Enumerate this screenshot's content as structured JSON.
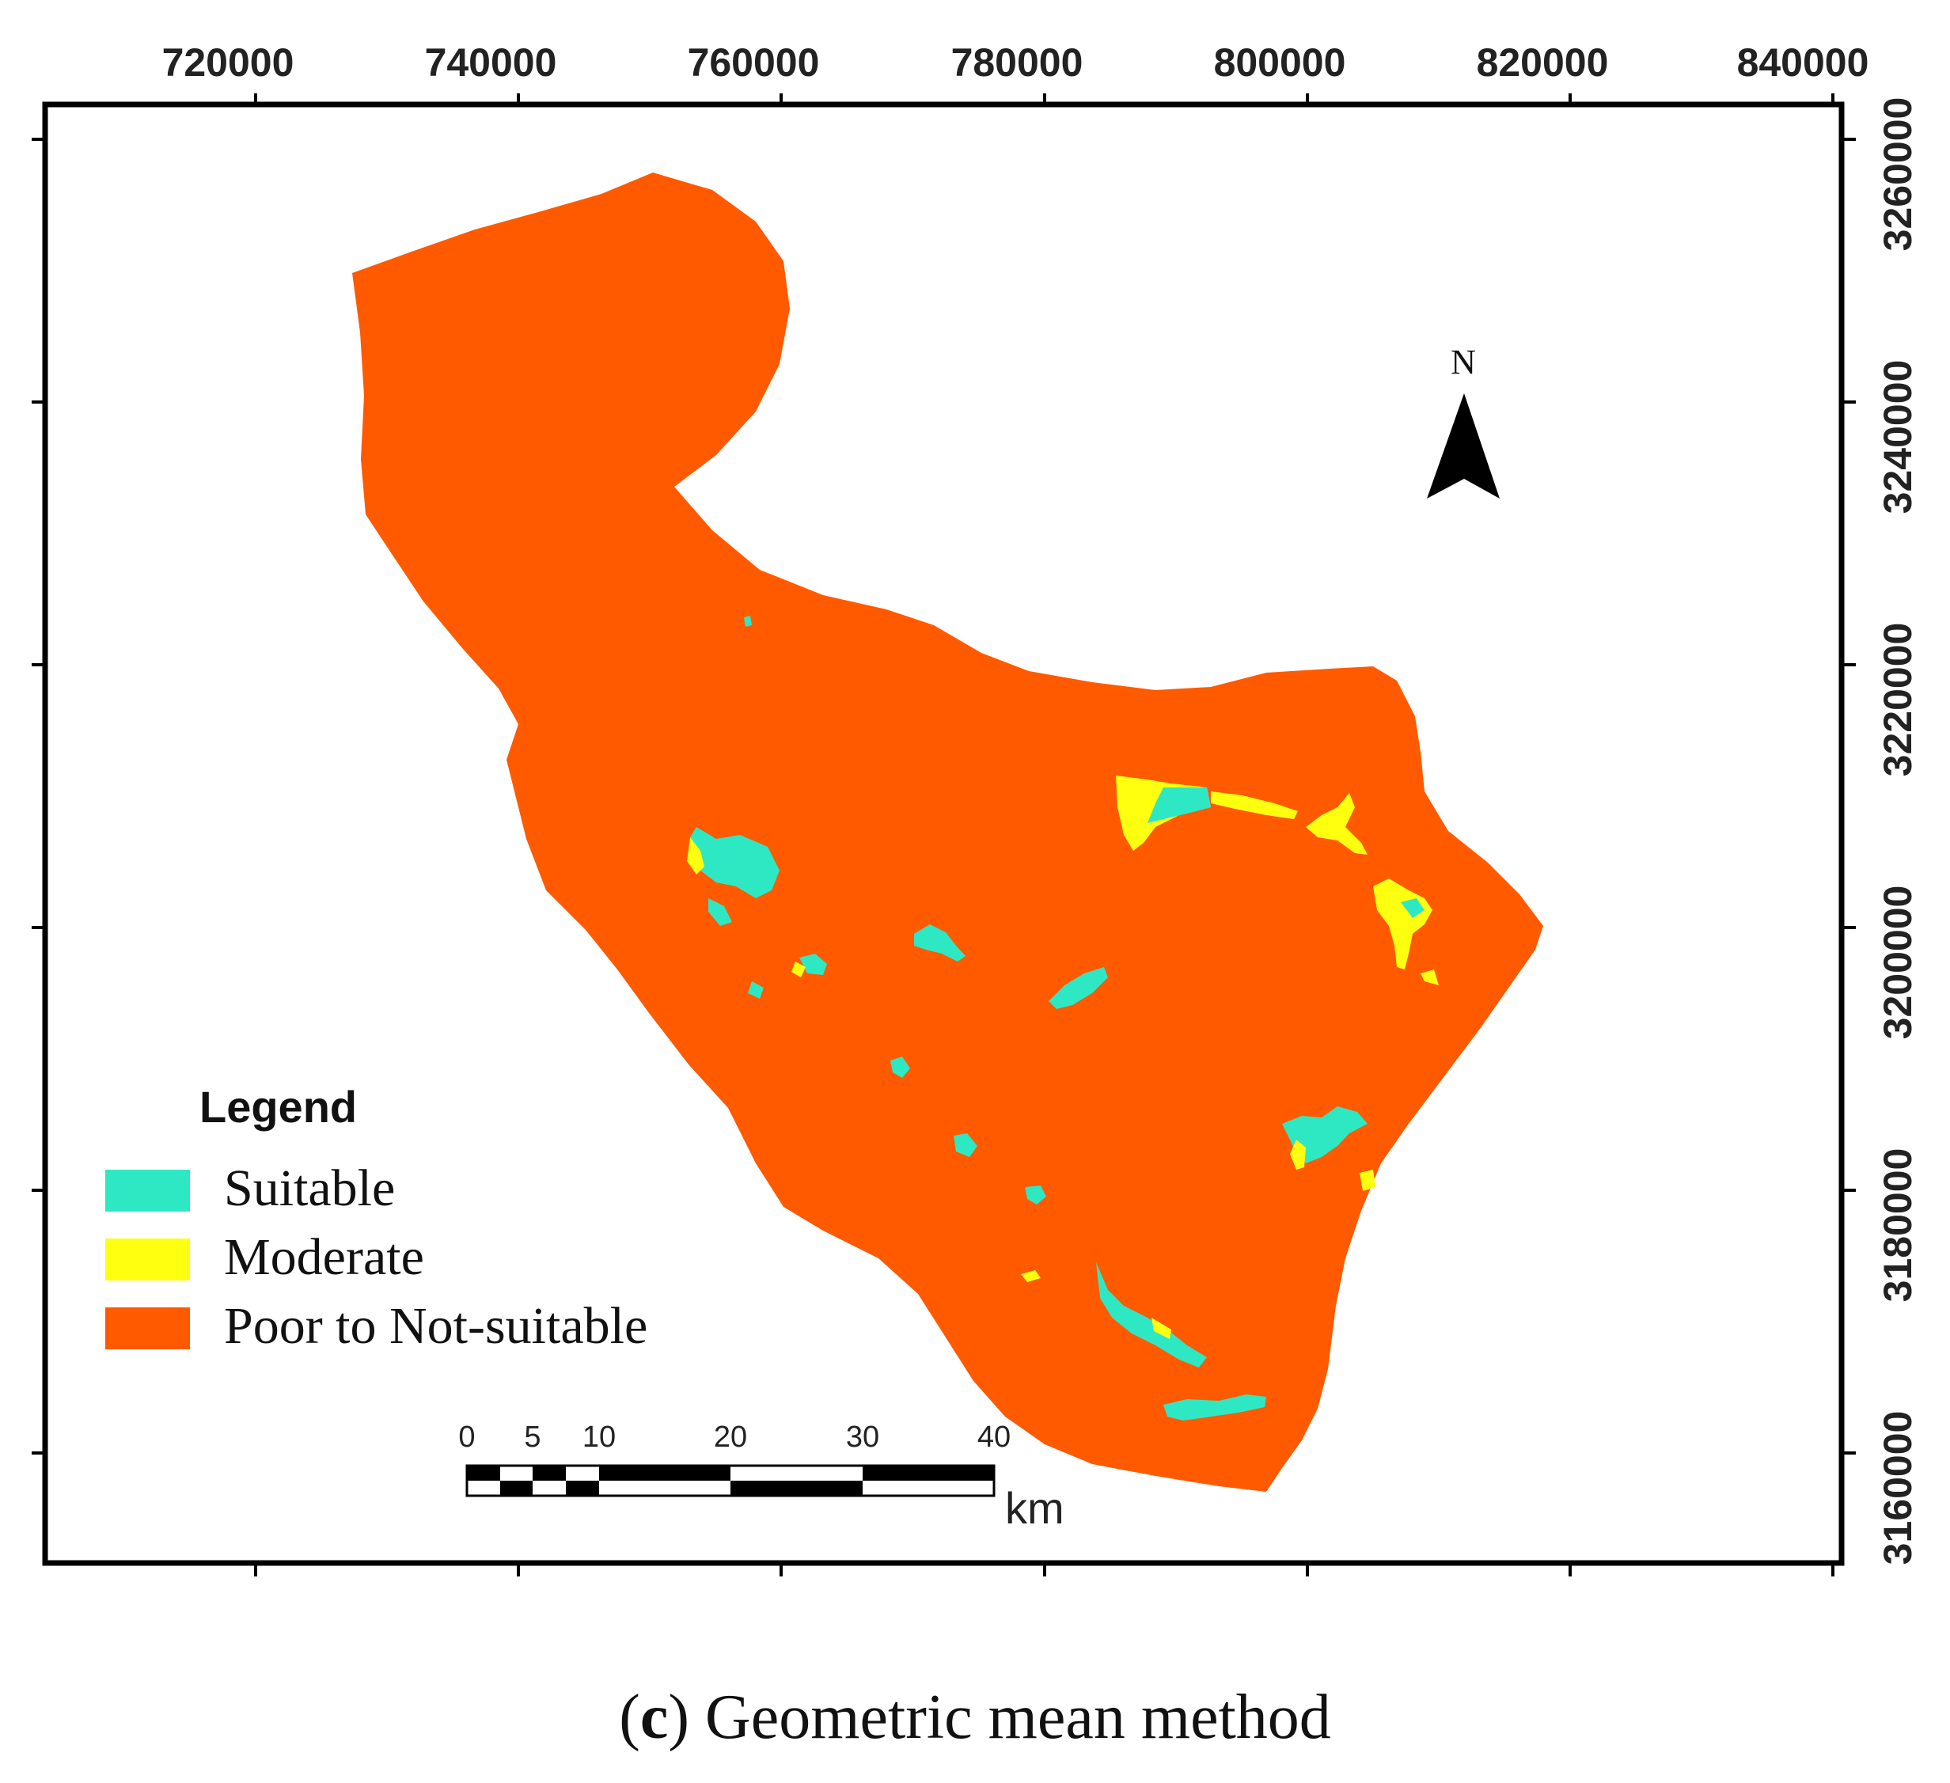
{
  "map": {
    "x_ticks": [
      "720000",
      "740000",
      "760000",
      "780000",
      "800000",
      "820000",
      "840000"
    ],
    "y_ticks": [
      "3260000",
      "3240000",
      "3220000",
      "3200000",
      "3180000",
      "3160000"
    ],
    "colors": {
      "suitable": "#2ee8c4",
      "moderate": "#ffff10",
      "poor": "#ff5a00",
      "frame": "#000000"
    },
    "north_label": "N"
  },
  "legend": {
    "title": "Legend",
    "items": [
      {
        "label": "Suitable",
        "color": "#2ee8c4"
      },
      {
        "label": "Moderate",
        "color": "#ffff10"
      },
      {
        "label": "Poor to Not-suitable",
        "color": "#ff5a00"
      }
    ]
  },
  "scale_bar": {
    "labels": [
      "0",
      "5",
      "10",
      "20",
      "30",
      "40"
    ],
    "unit": "km"
  },
  "caption": {
    "open": "(",
    "letter": "c",
    "text": ") Geometric mean method"
  }
}
